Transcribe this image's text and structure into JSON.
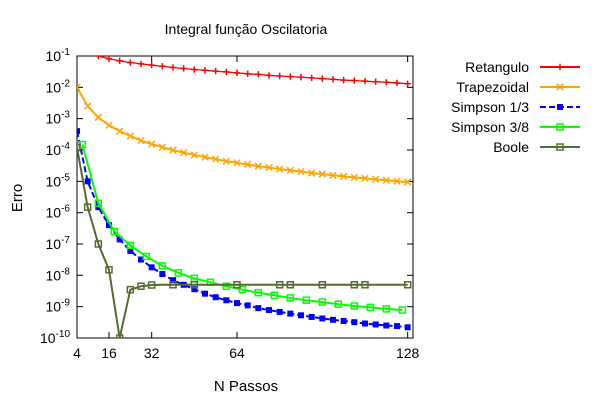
{
  "chart_data": {
    "type": "line",
    "title": "Integral função Oscilatoria",
    "xlabel": "N Passos",
    "ylabel": "Erro",
    "xlim": [
      4,
      130
    ],
    "ylim": [
      1e-10,
      0.1
    ],
    "y_scale": "log",
    "x_ticks": [
      4,
      16,
      32,
      64,
      128
    ],
    "y_ticks": [
      {
        "value": 0.1,
        "base": "10",
        "exp": "-1"
      },
      {
        "value": 0.01,
        "base": "10",
        "exp": "-2"
      },
      {
        "value": 0.001,
        "base": "10",
        "exp": "-3"
      },
      {
        "value": 0.0001,
        "base": "10",
        "exp": "-4"
      },
      {
        "value": 1e-05,
        "base": "10",
        "exp": "-5"
      },
      {
        "value": 1e-06,
        "base": "10",
        "exp": "-6"
      },
      {
        "value": 1e-07,
        "base": "10",
        "exp": "-7"
      },
      {
        "value": 1e-08,
        "base": "10",
        "exp": "-8"
      },
      {
        "value": 1e-09,
        "base": "10",
        "exp": "-9"
      },
      {
        "value": 1e-10,
        "base": "10",
        "exp": "-10"
      }
    ],
    "grid": false,
    "legend_position": "outside-right",
    "series": [
      {
        "name": "Retangulo",
        "color": "#ff0000",
        "marker": "plus",
        "x": [
          12,
          16,
          20,
          24,
          28,
          32,
          36,
          40,
          44,
          48,
          52,
          56,
          60,
          64,
          68,
          72,
          76,
          80,
          84,
          88,
          92,
          96,
          100,
          104,
          108,
          112,
          116,
          120,
          124,
          128
        ],
        "y": [
          0.1,
          0.082,
          0.07,
          0.062,
          0.056,
          0.051,
          0.047,
          0.043,
          0.04,
          0.037,
          0.035,
          0.033,
          0.031,
          0.029,
          0.027,
          0.026,
          0.024,
          0.023,
          0.022,
          0.021,
          0.02,
          0.019,
          0.018,
          0.017,
          0.0165,
          0.0158,
          0.0151,
          0.0145,
          0.0138,
          0.013
        ]
      },
      {
        "name": "Trapezoidal",
        "color": "#ffa500",
        "marker": "cross",
        "x": [
          4,
          8,
          12,
          16,
          20,
          24,
          28,
          32,
          36,
          40,
          44,
          48,
          52,
          56,
          60,
          64,
          68,
          72,
          76,
          80,
          84,
          88,
          92,
          96,
          100,
          104,
          108,
          112,
          116,
          120,
          124,
          128
        ],
        "y": [
          0.01,
          0.0025,
          0.0011,
          0.00062,
          0.0004,
          0.00028,
          0.0002,
          0.000155,
          0.000122,
          9.9e-05,
          8.2e-05,
          6.9e-05,
          5.9e-05,
          5.1e-05,
          4.4e-05,
          3.9e-05,
          3.45e-05,
          3.05e-05,
          2.75e-05,
          2.45e-05,
          2.25e-05,
          2.05e-05,
          1.85e-05,
          1.7e-05,
          1.56e-05,
          1.44e-05,
          1.34e-05,
          1.24e-05,
          1.16e-05,
          1.08e-05,
          1.01e-05,
          9.5e-06
        ]
      },
      {
        "name": "Simpson 1/3",
        "color": "#0000ff",
        "marker": "filled-square",
        "x": [
          4,
          8,
          12,
          16,
          20,
          24,
          28,
          32,
          36,
          40,
          44,
          48,
          52,
          56,
          60,
          64,
          68,
          72,
          76,
          80,
          84,
          88,
          92,
          96,
          100,
          104,
          108,
          112,
          116,
          120,
          124,
          128
        ],
        "y": [
          0.0004,
          1e-05,
          1.5e-06,
          4e-07,
          1.4e-07,
          6e-08,
          3.2e-08,
          1.8e-08,
          1.1e-08,
          7e-09,
          5e-09,
          3.6e-09,
          2.6e-09,
          2e-09,
          1.6e-09,
          1.3e-09,
          1.1e-09,
          9e-10,
          7.8e-10,
          6.8e-10,
          6e-10,
          5.3e-10,
          4.7e-10,
          4.2e-10,
          3.8e-10,
          3.5e-10,
          3.2e-10,
          2.9e-10,
          2.7e-10,
          2.5e-10,
          2.4e-10,
          2.2e-10
        ]
      },
      {
        "name": "Simpson 3/8",
        "color": "#00ff00",
        "marker": "open-square",
        "x": [
          6,
          12,
          18,
          24,
          30,
          36,
          42,
          48,
          54,
          60,
          66,
          72,
          78,
          84,
          90,
          96,
          102,
          108,
          114,
          120,
          126
        ],
        "y": [
          0.00015,
          2e-06,
          2.5e-07,
          9e-08,
          4e-08,
          2e-08,
          1.2e-08,
          8e-09,
          6e-09,
          4.5e-09,
          3.5e-09,
          2.8e-09,
          2.3e-09,
          1.9e-09,
          1.6e-09,
          1.4e-09,
          1.2e-09,
          1.05e-09,
          9.5e-10,
          8.5e-10,
          7.8e-10
        ]
      },
      {
        "name": "Boole",
        "color": "#556b2f",
        "marker": "open-square",
        "x": [
          4,
          8,
          12,
          16,
          20,
          24,
          28,
          32,
          36,
          40,
          44,
          48,
          52,
          56,
          60,
          64,
          68,
          72,
          76,
          80,
          84,
          88,
          92,
          96,
          100,
          104,
          108,
          112,
          116,
          120,
          124,
          128
        ],
        "y": [
          0.00012,
          1.5e-06,
          1e-07,
          1.5e-08,
          1e-10,
          3.5e-09,
          4.5e-09,
          4.9e-09,
          5e-09,
          5e-09,
          5e-09,
          5e-09,
          5e-09,
          5e-09,
          5e-09,
          5e-09,
          5e-09,
          5e-09,
          5e-09,
          5e-09,
          5e-09,
          5e-09,
          5e-09,
          5e-09,
          5e-09,
          5e-09,
          5e-09,
          5e-09,
          5e-09,
          5e-09,
          5e-09,
          5e-09
        ]
      }
    ]
  }
}
